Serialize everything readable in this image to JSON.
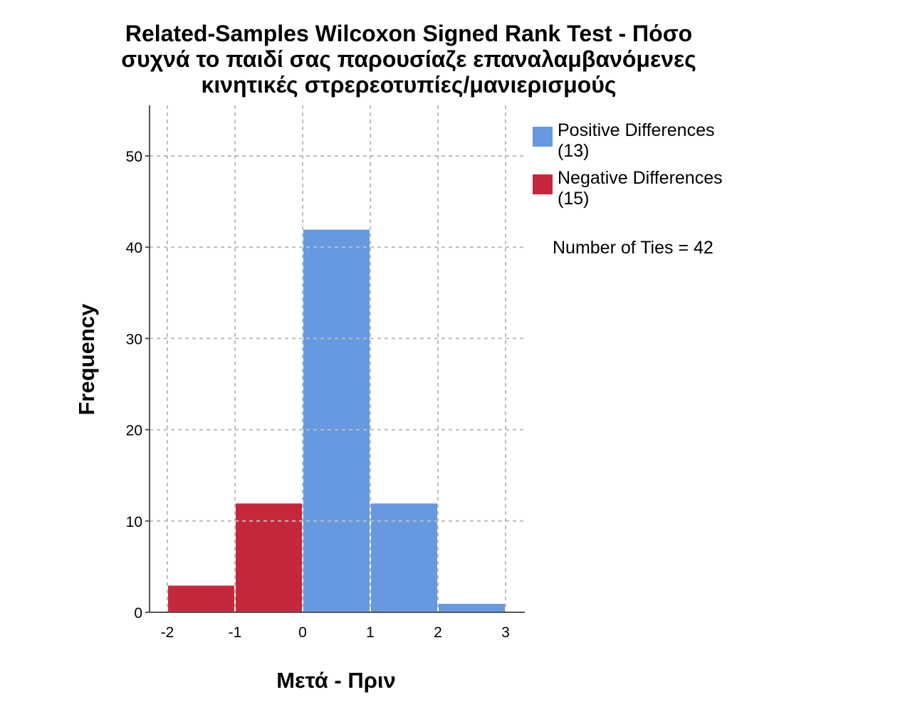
{
  "chart_data": {
    "type": "bar",
    "title_lines": [
      "Related-Samples Wilcoxon Signed Rank Test - Πόσο",
      "συχνά το παιδί σας παρουσίαζε επαναλαμβανόμενες",
      "κινητικές στρερεοτυπίες/μανιερισμούς"
    ],
    "xlabel": "Μετά - Πριν",
    "ylabel": "Frequency",
    "xlim": [
      -2,
      3
    ],
    "ylim": [
      0,
      55
    ],
    "x_ticks": [
      -2,
      -1,
      0,
      1,
      2,
      3
    ],
    "x_tick_labels": [
      "-2",
      "-1",
      "0",
      "1",
      "2",
      "3"
    ],
    "y_ticks": [
      0,
      10,
      20,
      30,
      40,
      50
    ],
    "y_tick_labels": [
      "0",
      "10",
      "20",
      "30",
      "40",
      "50"
    ],
    "grid": true,
    "legend_position": "right",
    "bins": [
      {
        "x0": -2,
        "x1": -1,
        "value": 3,
        "series": "negative"
      },
      {
        "x0": -1,
        "x1": 0,
        "value": 12,
        "series": "negative"
      },
      {
        "x0": 0,
        "x1": 1,
        "value": 42,
        "series": "positive"
      },
      {
        "x0": 1,
        "x1": 2,
        "value": 12,
        "series": "positive"
      },
      {
        "x0": 2,
        "x1": 3,
        "value": 1,
        "series": "positive"
      }
    ],
    "series": [
      {
        "key": "positive",
        "name": "Positive Differences",
        "count_label": "(13)",
        "color": "#6699e0"
      },
      {
        "key": "negative",
        "name": "Negative Differences",
        "count_label": "(15)",
        "color": "#c5283d"
      }
    ],
    "annotation": "Number of Ties = 42"
  }
}
